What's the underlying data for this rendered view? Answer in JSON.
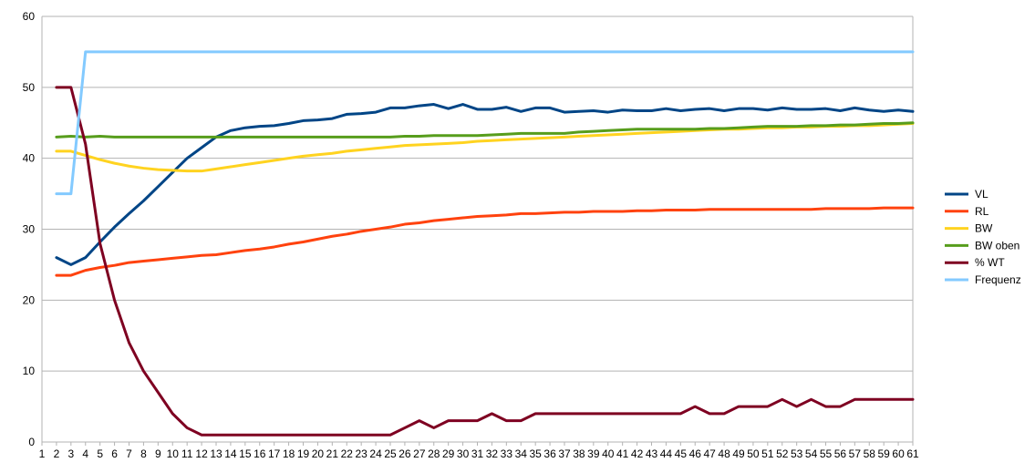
{
  "chart_data": {
    "type": "line",
    "title": "",
    "xlabel": "",
    "ylabel": "",
    "ylim": [
      0,
      60
    ],
    "yticks": [
      0,
      10,
      20,
      30,
      40,
      50,
      60
    ],
    "xticks": [
      1,
      2,
      3,
      4,
      5,
      6,
      7,
      8,
      9,
      10,
      11,
      12,
      13,
      14,
      15,
      16,
      17,
      18,
      19,
      20,
      21,
      22,
      23,
      24,
      25,
      26,
      27,
      28,
      29,
      30,
      31,
      32,
      33,
      34,
      35,
      36,
      37,
      38,
      39,
      40,
      41,
      42,
      43,
      44,
      45,
      46,
      47,
      48,
      49,
      50,
      51,
      52,
      53,
      54,
      55,
      56,
      57,
      58,
      59,
      60,
      61
    ],
    "grid": "horizontal",
    "legend_position": "right",
    "x": [
      2,
      3,
      4,
      5,
      6,
      7,
      8,
      9,
      10,
      11,
      12,
      13,
      14,
      15,
      16,
      17,
      18,
      19,
      20,
      21,
      22,
      23,
      24,
      25,
      26,
      27,
      28,
      29,
      30,
      31,
      32,
      33,
      34,
      35,
      36,
      37,
      38,
      39,
      40,
      41,
      42,
      43,
      44,
      45,
      46,
      47,
      48,
      49,
      50,
      51,
      52,
      53,
      54,
      55,
      56,
      57,
      58,
      59,
      60,
      61
    ],
    "series": [
      {
        "name": "VL",
        "color": "#004586",
        "values": [
          26,
          25,
          26,
          28.2,
          30.3,
          32.2,
          34,
          36,
          38,
          40,
          41.5,
          43,
          43.9,
          44.3,
          44.5,
          44.6,
          44.9,
          45.3,
          45.4,
          45.6,
          46.2,
          46.3,
          46.5,
          47.1,
          47.1,
          47.4,
          47.6,
          47,
          47.6,
          46.9,
          46.9,
          47.2,
          46.6,
          47.1,
          47.1,
          46.5,
          46.6,
          46.7,
          46.5,
          46.8,
          46.7,
          46.7,
          47,
          46.7,
          46.9,
          47,
          46.7,
          47,
          47,
          46.8,
          47.1,
          46.9,
          46.9,
          47,
          46.7,
          47.1,
          46.8,
          46.6,
          46.8,
          46.6
        ]
      },
      {
        "name": "RL",
        "color": "#ff420e",
        "values": [
          23.5,
          23.5,
          24.2,
          24.6,
          24.9,
          25.3,
          25.5,
          25.7,
          25.9,
          26.1,
          26.3,
          26.4,
          26.7,
          27,
          27.2,
          27.5,
          27.9,
          28.2,
          28.6,
          29,
          29.3,
          29.7,
          30,
          30.3,
          30.7,
          30.9,
          31.2,
          31.4,
          31.6,
          31.8,
          31.9,
          32,
          32.2,
          32.2,
          32.3,
          32.4,
          32.4,
          32.5,
          32.5,
          32.5,
          32.6,
          32.6,
          32.7,
          32.7,
          32.7,
          32.8,
          32.8,
          32.8,
          32.8,
          32.8,
          32.8,
          32.8,
          32.8,
          32.9,
          32.9,
          32.9,
          32.9,
          33,
          33,
          33
        ]
      },
      {
        "name": "BW",
        "color": "#ffd320",
        "values": [
          41,
          41,
          40.4,
          39.8,
          39.3,
          38.9,
          38.6,
          38.4,
          38.3,
          38.2,
          38.2,
          38.5,
          38.8,
          39.1,
          39.4,
          39.7,
          40,
          40.3,
          40.5,
          40.7,
          41,
          41.2,
          41.4,
          41.6,
          41.8,
          41.9,
          42,
          42.1,
          42.2,
          42.4,
          42.5,
          42.6,
          42.7,
          42.8,
          42.9,
          43,
          43.1,
          43.2,
          43.3,
          43.4,
          43.5,
          43.6,
          43.7,
          43.8,
          43.9,
          44,
          44.1,
          44.1,
          44.2,
          44.3,
          44.3,
          44.4,
          44.4,
          44.5,
          44.5,
          44.6,
          44.6,
          44.7,
          44.8,
          44.9
        ]
      },
      {
        "name": "BW oben",
        "color": "#579d1c",
        "values": [
          43,
          43.1,
          43,
          43.1,
          43,
          43,
          43,
          43,
          43,
          43,
          43,
          43,
          43,
          43,
          43,
          43,
          43,
          43,
          43,
          43,
          43,
          43,
          43,
          43,
          43.1,
          43.1,
          43.2,
          43.2,
          43.2,
          43.2,
          43.3,
          43.4,
          43.5,
          43.5,
          43.5,
          43.5,
          43.7,
          43.8,
          43.9,
          44,
          44.1,
          44.1,
          44.1,
          44.1,
          44.1,
          44.2,
          44.2,
          44.3,
          44.4,
          44.5,
          44.5,
          44.5,
          44.6,
          44.6,
          44.7,
          44.7,
          44.8,
          44.9,
          44.9,
          45
        ]
      },
      {
        "name": "% WT",
        "color": "#7e0021",
        "values": [
          50,
          50,
          42,
          28,
          20,
          14,
          10,
          7,
          4,
          2,
          1,
          1,
          1,
          1,
          1,
          1,
          1,
          1,
          1,
          1,
          1,
          1,
          1,
          1,
          2,
          3,
          2,
          3,
          3,
          3,
          4,
          3,
          3,
          4,
          4,
          4,
          4,
          4,
          4,
          4,
          4,
          4,
          4,
          4,
          5,
          4,
          4,
          5,
          5,
          5,
          6,
          5,
          6,
          5,
          5,
          6,
          6,
          6,
          6,
          6
        ]
      },
      {
        "name": "Frequenz",
        "color": "#83caff",
        "values": [
          35,
          35,
          55,
          55,
          55,
          55,
          55,
          55,
          55,
          55,
          55,
          55,
          55,
          55,
          55,
          55,
          55,
          55,
          55,
          55,
          55,
          55,
          55,
          55,
          55,
          55,
          55,
          55,
          55,
          55,
          55,
          55,
          55,
          55,
          55,
          55,
          55,
          55,
          55,
          55,
          55,
          55,
          55,
          55,
          55,
          55,
          55,
          55,
          55,
          55,
          55,
          55,
          55,
          55,
          55,
          55,
          55,
          55,
          55,
          55
        ]
      }
    ]
  }
}
